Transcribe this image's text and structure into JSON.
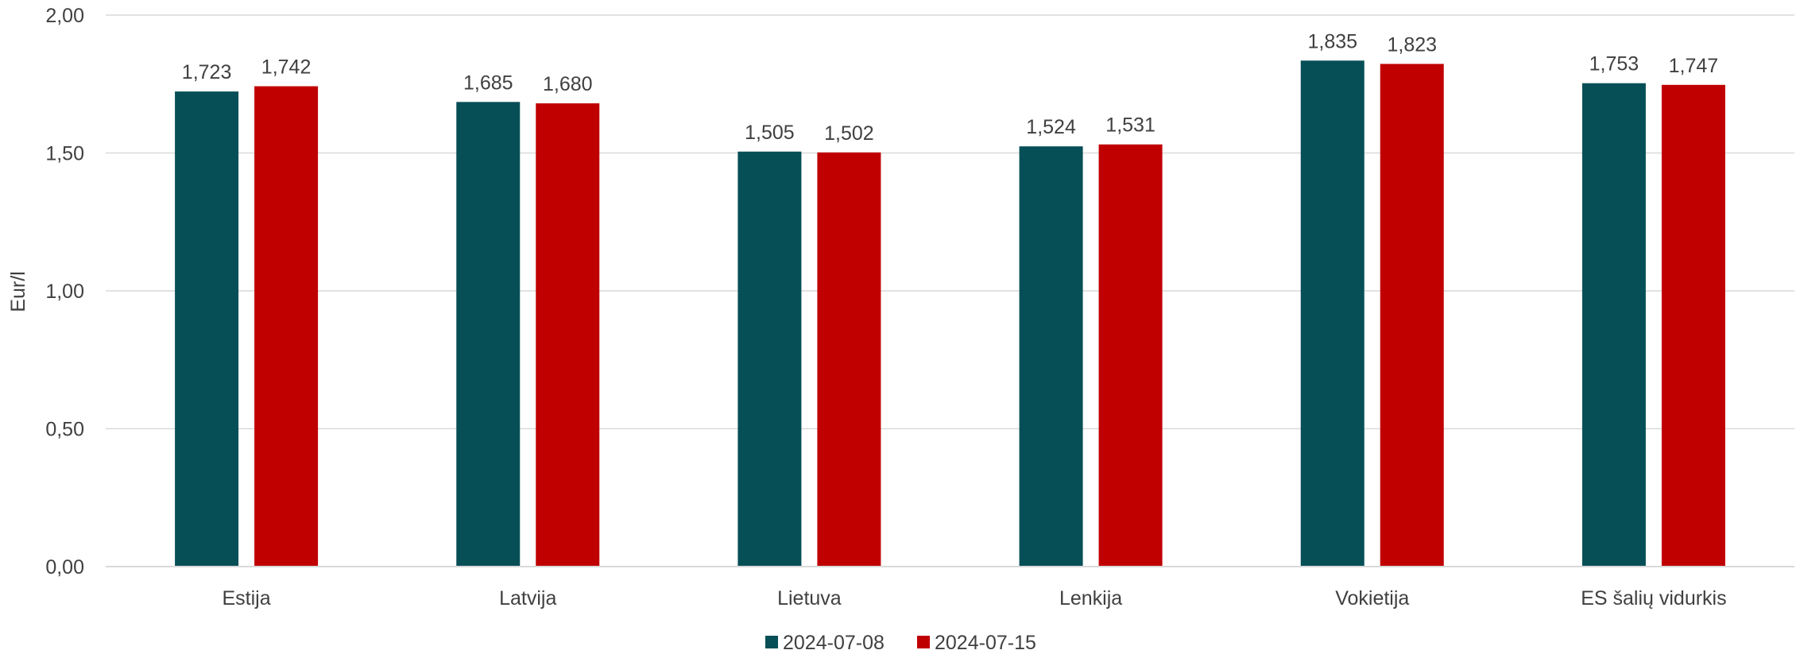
{
  "chart_data": {
    "type": "bar",
    "title": "",
    "xlabel": "",
    "ylabel": "Eur/l",
    "ylim": [
      0,
      2
    ],
    "yticks": [
      "0,00",
      "0,50",
      "1,00",
      "1,50",
      "2,00"
    ],
    "ytick_values": [
      0,
      0.5,
      1,
      1.5,
      2
    ],
    "grid": true,
    "legend_position": "bottom",
    "categories": [
      "Estija",
      "Latvija",
      "Lietuva",
      "Lenkija",
      "Vokietija",
      "ES šalių vidurkis"
    ],
    "series": [
      {
        "name": "2024-07-08",
        "color": "#074F57",
        "values": [
          1.723,
          1.685,
          1.505,
          1.524,
          1.835,
          1.753
        ],
        "labels": [
          "1,723",
          "1,685",
          "1,505",
          "1,524",
          "1,835",
          "1,753"
        ]
      },
      {
        "name": "2024-07-15",
        "color": "#C00000",
        "values": [
          1.742,
          1.68,
          1.502,
          1.531,
          1.823,
          1.747
        ],
        "labels": [
          "1,742",
          "1,680",
          "1,502",
          "1,531",
          "1,823",
          "1,747"
        ]
      }
    ]
  }
}
